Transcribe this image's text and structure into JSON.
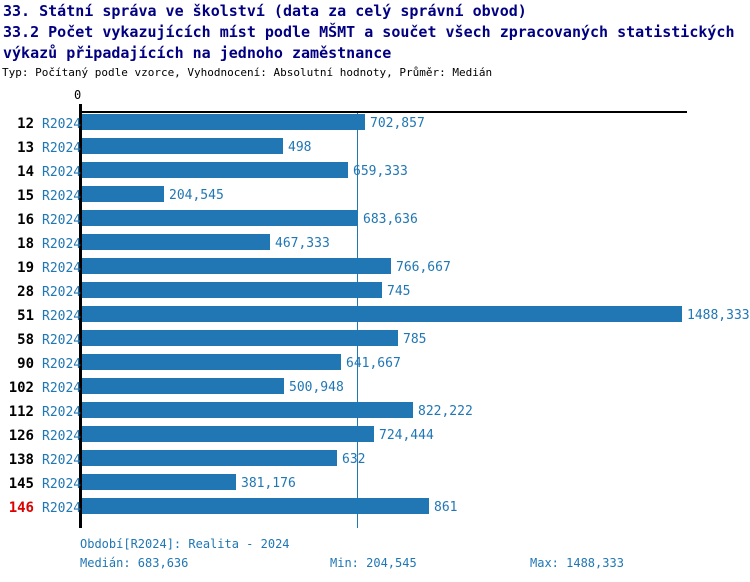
{
  "header": {
    "title": "33. Státní správa ve školství (data za celý správní obvod)",
    "subtitle_line1": "33.2 Počet vykazujících míst podle MŠMT a součet všech zpracovaných statistických",
    "subtitle_line2": " výkazů připadajících na jednoho zaměstnance",
    "type_info": "Typ: Počítaný podle vzorce, Vyhodnocení: Absolutní hodnoty, Průměr: Medián"
  },
  "chart_data": {
    "type": "bar",
    "orientation": "horizontal",
    "axis_zero_label": "0",
    "categories": [
      "12",
      "13",
      "14",
      "15",
      "16",
      "18",
      "19",
      "28",
      "51",
      "58",
      "90",
      "102",
      "112",
      "126",
      "138",
      "145",
      "146"
    ],
    "period_label": "R2024",
    "series": [
      {
        "name": "R2024",
        "values": [
          702.857,
          498,
          659.333,
          204.545,
          683.636,
          467.333,
          766.667,
          745,
          1488.333,
          785,
          641.667,
          500.948,
          822.222,
          724.444,
          632,
          381.176,
          861
        ]
      }
    ],
    "value_labels": [
      "702,857",
      "498",
      "659,333",
      "204,545",
      "683,636",
      "467,333",
      "766,667",
      "745",
      "1488,333",
      "785",
      "641,667",
      "500,948",
      "822,222",
      "724,444",
      "632",
      "381,176",
      "861"
    ],
    "highlighted_category": "146",
    "xlim": [
      0,
      1488.333
    ],
    "median": 683.636,
    "grid": false,
    "legend": "none",
    "colors": {
      "bar": "#2077b4",
      "blue_text": "#2077b4",
      "category_label": "#000000",
      "highlight": "#dd0000",
      "axis": "#000000",
      "title": "#000080"
    }
  },
  "footer": {
    "period": "Období[R2024]: Realita - 2024",
    "median": "Medián: 683,636",
    "min": "Min: 204,545",
    "max": "Max: 1488,333"
  }
}
